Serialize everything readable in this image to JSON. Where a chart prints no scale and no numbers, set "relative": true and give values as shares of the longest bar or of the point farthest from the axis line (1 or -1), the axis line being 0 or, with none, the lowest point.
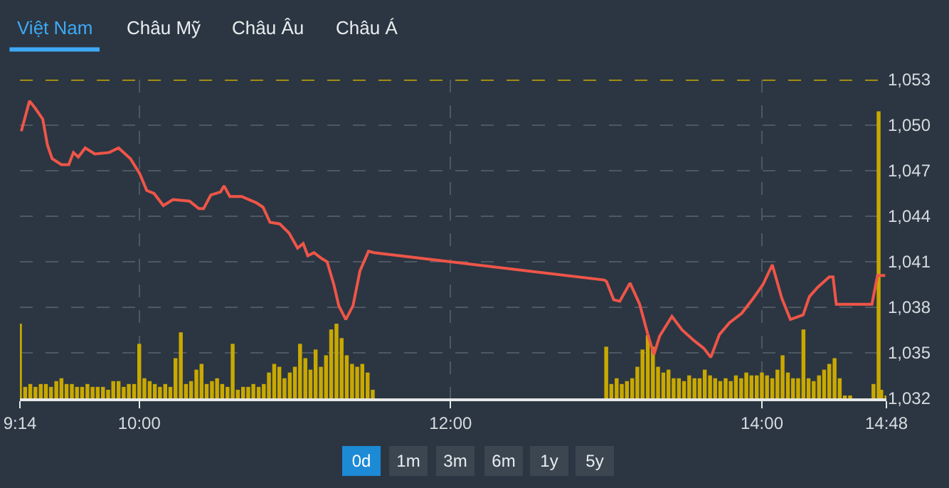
{
  "chart_data": [
    {
      "type": "line",
      "x": [
        9.242,
        9.295,
        9.333,
        9.38,
        9.41,
        9.44,
        9.5,
        9.547,
        9.577,
        9.608,
        9.653,
        9.715,
        9.807,
        9.867,
        9.943,
        10.003,
        10.048,
        10.095,
        10.155,
        10.217,
        10.323,
        10.383,
        10.413,
        10.46,
        10.522,
        10.545,
        10.582,
        10.658,
        10.75,
        10.795,
        10.84,
        10.902,
        10.962,
        11.017,
        11.053,
        11.083,
        11.122,
        11.175,
        11.207,
        11.25,
        11.282,
        11.327,
        11.373,
        11.418,
        11.473,
        11.51,
        12.987,
        13.002,
        13.048,
        13.087,
        13.153,
        13.215,
        13.27,
        13.307,
        13.343,
        13.422,
        13.488,
        13.565,
        13.627,
        13.672,
        13.727,
        13.793,
        13.87,
        13.945,
        14.007,
        14.067,
        14.128,
        14.183,
        14.265,
        14.305,
        14.357,
        14.433,
        14.457,
        14.478,
        14.707,
        14.743,
        14.792
      ],
      "series": [
        {
          "color": "#ef5548",
          "values": [
            1049.6,
            1051.6,
            1051.1,
            1050.4,
            1048.7,
            1047.8,
            1047.4,
            1047.4,
            1048.2,
            1047.9,
            1048.5,
            1048.1,
            1048.2,
            1048.5,
            1047.8,
            1046.8,
            1045.7,
            1045.5,
            1044.7,
            1045.1,
            1045.0,
            1044.5,
            1044.5,
            1045.4,
            1045.6,
            1046.0,
            1045.3,
            1045.3,
            1044.9,
            1044.6,
            1043.6,
            1043.5,
            1042.9,
            1041.9,
            1042.2,
            1041.4,
            1041.6,
            1041.2,
            1041.0,
            1039.5,
            1038.1,
            1037.2,
            1038.1,
            1040.4,
            1041.7,
            1041.6,
            1039.8,
            1039.7,
            1038.5,
            1038.4,
            1039.6,
            1038.2,
            1036.1,
            1034.9,
            1036.1,
            1037.4,
            1036.5,
            1035.8,
            1035.3,
            1034.7,
            1036.2,
            1037.0,
            1037.6,
            1038.6,
            1039.5,
            1040.8,
            1038.6,
            1037.2,
            1037.5,
            1038.7,
            1039.3,
            1040.0,
            1040.0,
            1038.2,
            1038.2,
            1040.1,
            1040.1
          ]
        }
      ],
      "xlim": [
        9.2333,
        14.8
      ],
      "xticks": [
        {
          "value": 9.2333,
          "label": "9:14"
        },
        {
          "value": 10,
          "label": "10:00"
        },
        {
          "value": 12,
          "label": "12:00"
        },
        {
          "value": 14,
          "label": "14:00"
        },
        {
          "value": 14.8,
          "label": "14:48"
        }
      ],
      "ylim": [
        1032,
        1053
      ],
      "yticks": [
        {
          "value": 1032,
          "label": "1,032"
        },
        {
          "value": 1035,
          "label": "1,035"
        },
        {
          "value": 1038,
          "label": "1,038"
        },
        {
          "value": 1041,
          "label": "1,041"
        },
        {
          "value": 1044,
          "label": "1,044"
        },
        {
          "value": 1047,
          "label": "1,047"
        },
        {
          "value": 1050,
          "label": "1,050"
        },
        {
          "value": 1053,
          "label": "1,053"
        }
      ],
      "ref_lines": [
        {
          "axis": "y",
          "value": 1053,
          "color": "#c9a800",
          "line_style": "dashed"
        }
      ],
      "grid": true,
      "line_style": "solid",
      "annotations": [
        "Việt Nam",
        "Châu Mỹ",
        "Châu Âu",
        "Châu Á",
        "0d",
        "1m",
        "3m",
        "6m",
        "1y",
        "5y"
      ]
    },
    {
      "type": "bar",
      "relative": true,
      "tick_labels": false,
      "xlim": [
        9.2333,
        14.8
      ],
      "x": [
        9.2333,
        9.267,
        9.3,
        9.333,
        9.367,
        9.4,
        9.433,
        9.467,
        9.5,
        9.533,
        9.567,
        9.6,
        9.633,
        9.667,
        9.7,
        9.733,
        9.767,
        9.8,
        9.833,
        9.867,
        9.9,
        9.933,
        9.967,
        10.0,
        10.033,
        10.067,
        10.1,
        10.133,
        10.167,
        10.2,
        10.233,
        10.267,
        10.3,
        10.333,
        10.367,
        10.4,
        10.433,
        10.467,
        10.5,
        10.533,
        10.567,
        10.6,
        10.633,
        10.667,
        10.7,
        10.733,
        10.767,
        10.8,
        10.833,
        10.867,
        10.9,
        10.933,
        10.967,
        11.0,
        11.033,
        11.067,
        11.1,
        11.133,
        11.167,
        11.2,
        11.233,
        11.267,
        11.3,
        11.333,
        11.367,
        11.4,
        11.433,
        11.467,
        11.5,
        13.0,
        13.033,
        13.067,
        13.1,
        13.133,
        13.167,
        13.2,
        13.233,
        13.267,
        13.3,
        13.333,
        13.367,
        13.4,
        13.433,
        13.467,
        13.5,
        13.533,
        13.567,
        13.6,
        13.633,
        13.667,
        13.7,
        13.733,
        13.767,
        13.8,
        13.833,
        13.867,
        13.9,
        13.933,
        13.967,
        14.0,
        14.033,
        14.067,
        14.1,
        14.133,
        14.167,
        14.2,
        14.233,
        14.267,
        14.3,
        14.333,
        14.367,
        14.4,
        14.433,
        14.467,
        14.5,
        14.533,
        14.567,
        14.717,
        14.75,
        14.767,
        14.8
      ],
      "series": [
        {
          "color": "#c9a800",
          "values": [
            0.26,
            0.04,
            0.05,
            0.04,
            0.05,
            0.05,
            0.04,
            0.06,
            0.07,
            0.05,
            0.05,
            0.04,
            0.04,
            0.05,
            0.04,
            0.04,
            0.04,
            0.03,
            0.06,
            0.06,
            0.04,
            0.05,
            0.05,
            0.19,
            0.07,
            0.06,
            0.05,
            0.04,
            0.05,
            0.04,
            0.14,
            0.23,
            0.05,
            0.06,
            0.1,
            0.12,
            0.05,
            0.06,
            0.07,
            0.05,
            0.04,
            0.19,
            0.03,
            0.04,
            0.04,
            0.05,
            0.04,
            0.05,
            0.09,
            0.12,
            0.11,
            0.07,
            0.09,
            0.11,
            0.19,
            0.14,
            0.1,
            0.17,
            0.11,
            0.15,
            0.24,
            0.26,
            0.21,
            0.15,
            0.12,
            0.11,
            0.12,
            0.09,
            0.03,
            0.18,
            0.05,
            0.07,
            0.05,
            0.06,
            0.07,
            0.11,
            0.17,
            0.22,
            0.18,
            0.11,
            0.09,
            0.1,
            0.07,
            0.07,
            0.06,
            0.08,
            0.07,
            0.07,
            0.1,
            0.08,
            0.07,
            0.06,
            0.07,
            0.06,
            0.08,
            0.07,
            0.09,
            0.08,
            0.08,
            0.09,
            0.08,
            0.07,
            0.1,
            0.15,
            0.09,
            0.07,
            0.07,
            0.24,
            0.07,
            0.06,
            0.08,
            0.1,
            0.12,
            0.14,
            0.07,
            0.01,
            0.01,
            0.05,
            1,
            0.03,
            0.01
          ]
        }
      ]
    }
  ]
}
